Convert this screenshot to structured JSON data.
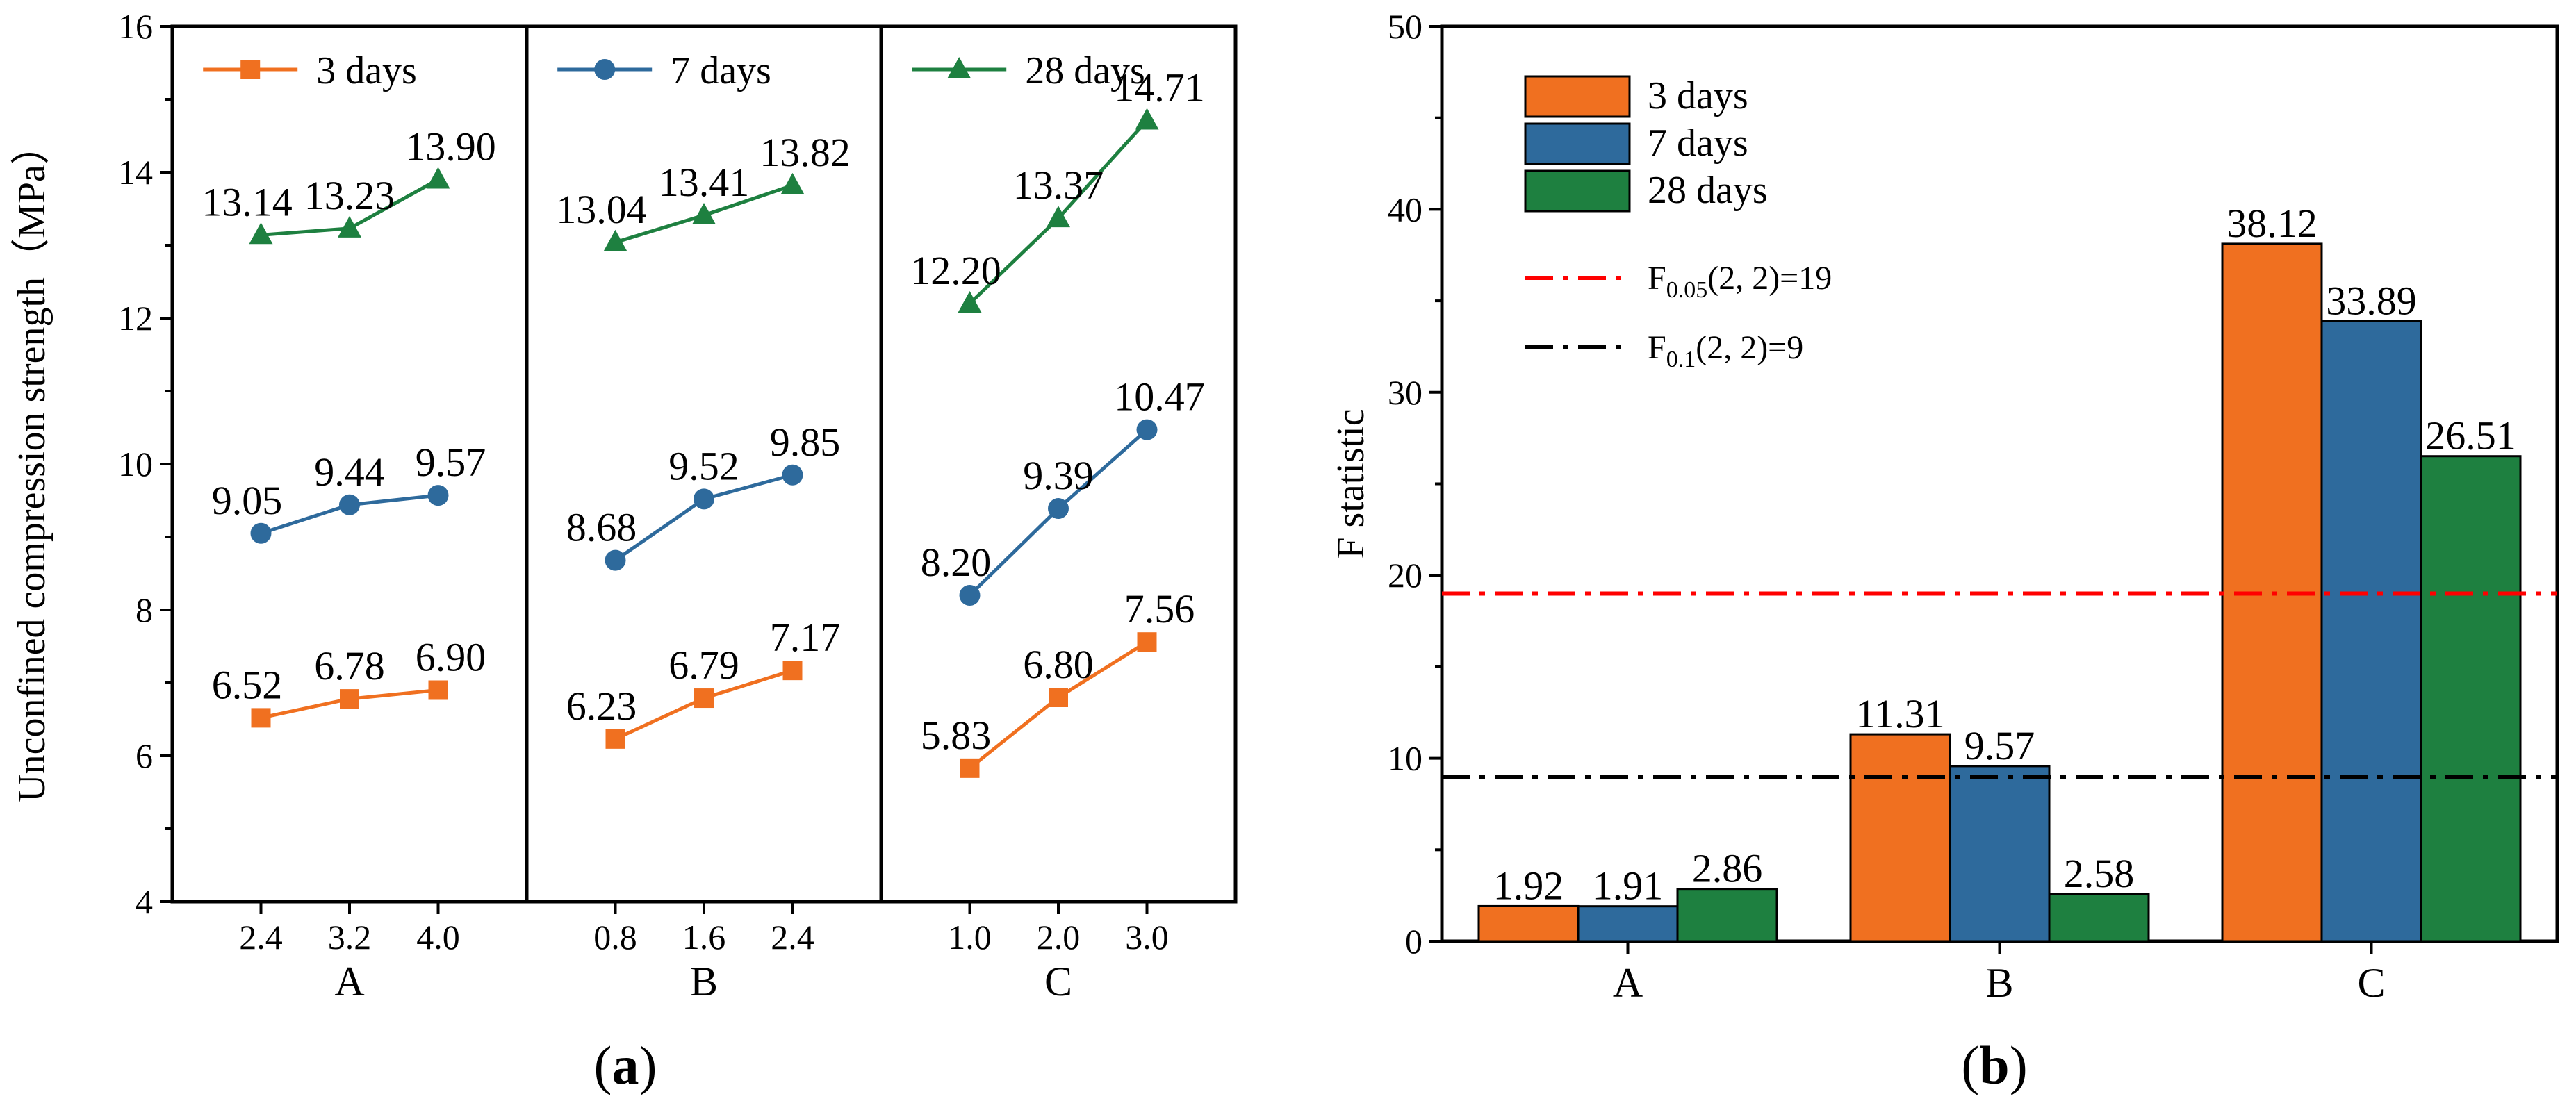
{
  "panel_labels": [
    "(a)",
    "(b)"
  ],
  "chart_data": [
    {
      "type": "line",
      "panel": "(a)",
      "ylabel": "Unconfined compression strength（MPa）",
      "ylim": [
        4,
        16
      ],
      "yticks": [
        4,
        6,
        8,
        10,
        12,
        14,
        16
      ],
      "grid": false,
      "legend_placement": "top",
      "groups": [
        {
          "name": "A",
          "x": [
            "2.4",
            "3.2",
            "4.0"
          ]
        },
        {
          "name": "B",
          "x": [
            "0.8",
            "1.6",
            "2.4"
          ]
        },
        {
          "name": "C",
          "x": [
            "1.0",
            "2.0",
            "3.0"
          ]
        }
      ],
      "series": [
        {
          "name": "3 days",
          "color": "#F07020",
          "marker": "square",
          "values": [
            [
              6.52,
              6.78,
              6.9
            ],
            [
              6.23,
              6.79,
              7.17
            ],
            [
              5.83,
              6.8,
              7.56
            ]
          ]
        },
        {
          "name": "7 days",
          "color": "#2E6A9C",
          "marker": "circle",
          "values": [
            [
              9.05,
              9.44,
              9.57
            ],
            [
              8.68,
              9.52,
              9.85
            ],
            [
              8.2,
              9.39,
              10.47
            ]
          ]
        },
        {
          "name": "28 days",
          "color": "#1E8040",
          "marker": "triangle",
          "values": [
            [
              13.14,
              13.23,
              13.9
            ],
            [
              13.04,
              13.41,
              13.82
            ],
            [
              12.2,
              13.37,
              14.71
            ]
          ]
        }
      ],
      "data_labels": [
        [
          [
            "6.52",
            "6.78",
            "6.90"
          ],
          [
            "6.23",
            "6.79",
            "7.17"
          ],
          [
            "5.83",
            "6.80",
            "7.56"
          ]
        ],
        [
          [
            "9.05",
            "9.44",
            "9.57"
          ],
          [
            "8.68",
            "9.52",
            "9.85"
          ],
          [
            "8.20",
            "9.39",
            "10.47"
          ]
        ],
        [
          [
            "13.14",
            "13.23",
            "13.90"
          ],
          [
            "13.04",
            "13.41",
            "13.82"
          ],
          [
            "12.20",
            "13.37",
            "14.71"
          ]
        ]
      ]
    },
    {
      "type": "bar",
      "panel": "(b)",
      "ylabel": "F statistic",
      "ylim": [
        0,
        50
      ],
      "yticks": [
        0,
        10,
        20,
        30,
        40,
        50
      ],
      "grid": false,
      "legend_placement": "top-left",
      "categories": [
        "A",
        "B",
        "C"
      ],
      "series": [
        {
          "name": "3 days",
          "color": "#F07020",
          "values": [
            1.92,
            11.31,
            38.12
          ]
        },
        {
          "name": "7 days",
          "color": "#2E6A9C",
          "values": [
            1.91,
            9.57,
            33.89
          ]
        },
        {
          "name": "28 days",
          "color": "#1E8040",
          "values": [
            2.86,
            2.58,
            26.51
          ]
        }
      ],
      "data_labels": [
        [
          "1.92",
          "11.31",
          "38.12"
        ],
        [
          "1.91",
          "9.57",
          "33.89"
        ],
        [
          "2.86",
          "2.58",
          "26.51"
        ]
      ],
      "reference_lines": [
        {
          "value": 19,
          "color": "#FF0000",
          "prefix": "F",
          "subscript": "0.05",
          "suffix": "(2, 2)=19"
        },
        {
          "value": 9,
          "color": "#000000",
          "prefix": "F",
          "subscript": "0.1",
          "suffix": "(2, 2)=9"
        }
      ]
    }
  ]
}
